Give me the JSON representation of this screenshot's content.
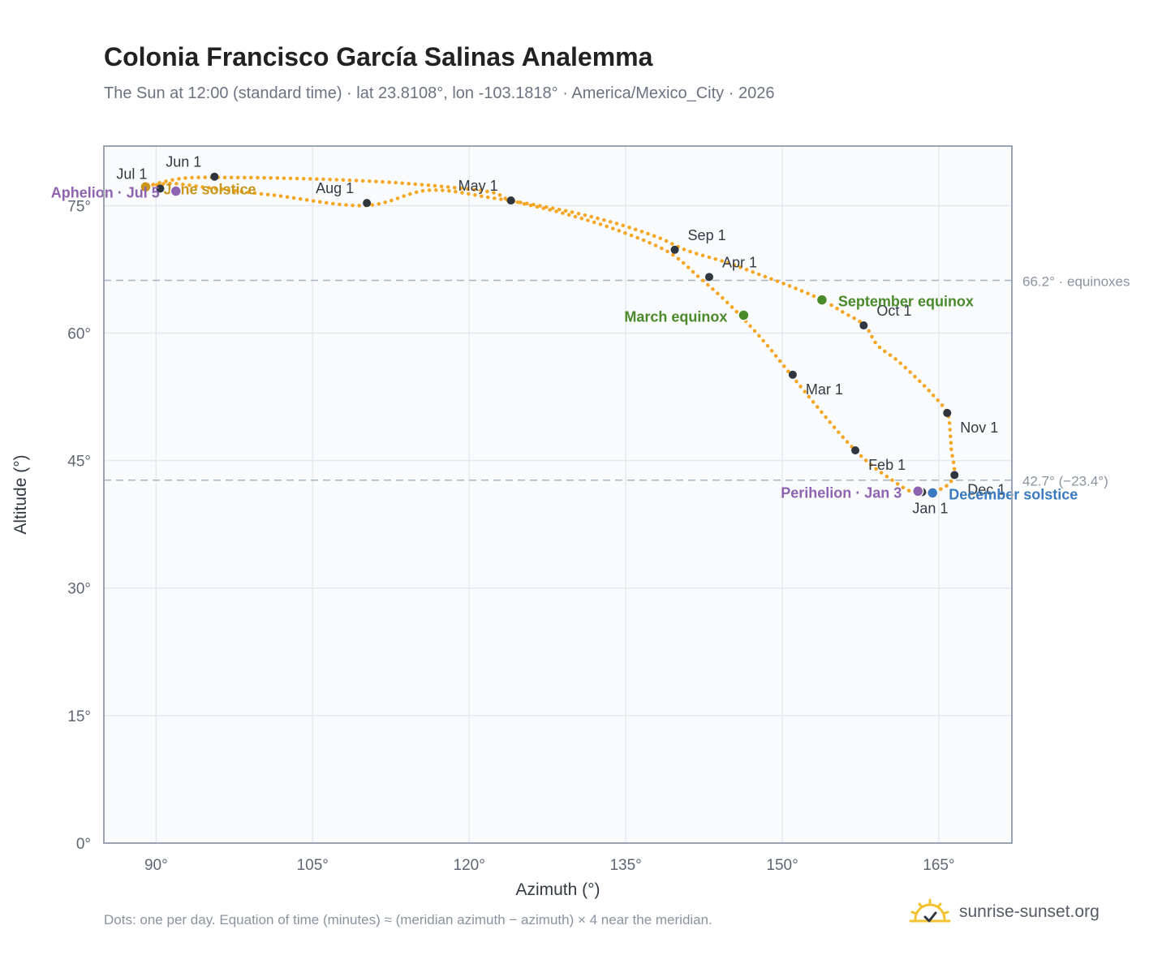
{
  "header": {
    "title": "Colonia Francisco García Salinas Analemma",
    "subtitle": "The Sun at 12:00 (standard time) · lat 23.8108°, lon -103.1818° · America/Mexico_City · 2026"
  },
  "footer": {
    "note": "Dots: one per day. Equation of time (minutes) ≈ (meridian azimuth − azimuth) × 4 near the meridian.",
    "brand": "sunrise-sunset.org"
  },
  "colors": {
    "path": "#f5a623",
    "month_dot": "#2f3640",
    "equinox": "#4a8a2a",
    "june_solstice": "#c9961a",
    "december_solstice": "#3a7bbf",
    "apsis": "#8e63b0",
    "grid": "#e6eaf0",
    "reference_line": "#a9b4c2",
    "plot_bg": "#f9fbfd",
    "axis_frame": "#9aa3b0"
  },
  "chart_data": {
    "type": "scatter",
    "title": "Colonia Francisco García Salinas Analemma",
    "xlabel": "Azimuth (°)",
    "ylabel": "Altitude (°)",
    "xlim": [
      85,
      172
    ],
    "ylim": [
      0,
      82
    ],
    "x_ticks": [
      90,
      105,
      120,
      135,
      150,
      165
    ],
    "x_tick_labels": [
      "90°",
      "105°",
      "120°",
      "135°",
      "150°",
      "165°"
    ],
    "y_ticks": [
      0,
      15,
      30,
      45,
      60,
      75
    ],
    "y_tick_labels": [
      "0°",
      "15°",
      "30°",
      "45°",
      "60°",
      "75°"
    ],
    "grid": true,
    "series": [
      {
        "points": [
          [
            164.0,
            41.2
          ],
          [
            164.6,
            41.3
          ],
          [
            165.1,
            41.6
          ],
          [
            165.7,
            42.0
          ],
          [
            166.2,
            42.6
          ],
          [
            166.5,
            43.5
          ],
          [
            166.4,
            44.8
          ],
          [
            166.2,
            46.3
          ],
          [
            166.1,
            48.0
          ],
          [
            165.8,
            50.6
          ],
          [
            164.3,
            52.9
          ],
          [
            162.6,
            55.0
          ],
          [
            160.9,
            56.9
          ],
          [
            159.1,
            58.6
          ],
          [
            157.9,
            60.9
          ],
          [
            155.9,
            62.4
          ],
          [
            153.8,
            63.9
          ],
          [
            151.0,
            65.4
          ],
          [
            148.0,
            66.8
          ],
          [
            144.7,
            68.3
          ],
          [
            140.9,
            69.7
          ],
          [
            138.0,
            71.3
          ],
          [
            133.8,
            73.0
          ],
          [
            128.8,
            74.5
          ],
          [
            122.2,
            75.9
          ],
          [
            116.1,
            76.8
          ],
          [
            110.0,
            75.0
          ],
          [
            101.4,
            76.2
          ],
          [
            95.0,
            77.1
          ],
          [
            91.4,
            77.6
          ],
          [
            89.0,
            77.2
          ],
          [
            92.5,
            78.2
          ],
          [
            97.0,
            78.3
          ],
          [
            103.0,
            78.2
          ],
          [
            110.0,
            77.9
          ],
          [
            116.0,
            77.4
          ],
          [
            122.0,
            76.6
          ],
          [
            124.0,
            75.6
          ],
          [
            129.0,
            74.1
          ],
          [
            134.0,
            72.2
          ],
          [
            139.0,
            69.6
          ],
          [
            142.0,
            66.6
          ],
          [
            144.3,
            64.1
          ],
          [
            146.5,
            61.4
          ],
          [
            148.6,
            58.5
          ],
          [
            150.7,
            55.3
          ],
          [
            152.9,
            52.0
          ],
          [
            155.2,
            48.6
          ],
          [
            157.0,
            46.2
          ],
          [
            158.6,
            44.4
          ],
          [
            160.3,
            42.9
          ],
          [
            161.9,
            41.6
          ],
          [
            163.0,
            41.2
          ],
          [
            164.0,
            41.2
          ]
        ]
      }
    ],
    "month_markers": [
      {
        "label": "Jan 1",
        "x": 163.4,
        "y": 41.3
      },
      {
        "label": "Feb 1",
        "x": 157.0,
        "y": 46.2
      },
      {
        "label": "Mar 1",
        "x": 151.0,
        "y": 55.1
      },
      {
        "label": "Apr 1",
        "x": 143.0,
        "y": 66.6
      },
      {
        "label": "May 1",
        "x": 124.0,
        "y": 75.6
      },
      {
        "label": "Jun 1",
        "x": 95.6,
        "y": 78.4
      },
      {
        "label": "Jul 1",
        "x": 90.4,
        "y": 77.0
      },
      {
        "label": "Aug 1",
        "x": 110.2,
        "y": 75.3
      },
      {
        "label": "Sep 1",
        "x": 139.7,
        "y": 69.8
      },
      {
        "label": "Oct 1",
        "x": 157.8,
        "y": 60.9
      },
      {
        "label": "Nov 1",
        "x": 165.8,
        "y": 50.6
      },
      {
        "label": "Dec 1",
        "x": 166.5,
        "y": 43.3
      }
    ],
    "events": [
      {
        "label": "March equinox",
        "x": 146.3,
        "y": 62.1,
        "color": "#4a8a2a"
      },
      {
        "label": "September equinox",
        "x": 153.8,
        "y": 63.9,
        "color": "#4a8a2a"
      },
      {
        "label": "June solstice",
        "x": 89.0,
        "y": 77.2,
        "color": "#c9961a"
      },
      {
        "label": "December solstice",
        "x": 164.4,
        "y": 41.2,
        "color": "#3a7bbf"
      },
      {
        "label": "Aphelion · Jul 5",
        "x": 91.9,
        "y": 76.7,
        "color": "#8e63b0"
      },
      {
        "label": "Perihelion · Jan 3",
        "x": 163.0,
        "y": 41.4,
        "color": "#8e63b0"
      }
    ],
    "reference_lines": [
      {
        "y": 66.2,
        "label": "66.2° · equinoxes"
      },
      {
        "y": 42.7,
        "label": "42.7° (−23.4°)"
      }
    ]
  }
}
